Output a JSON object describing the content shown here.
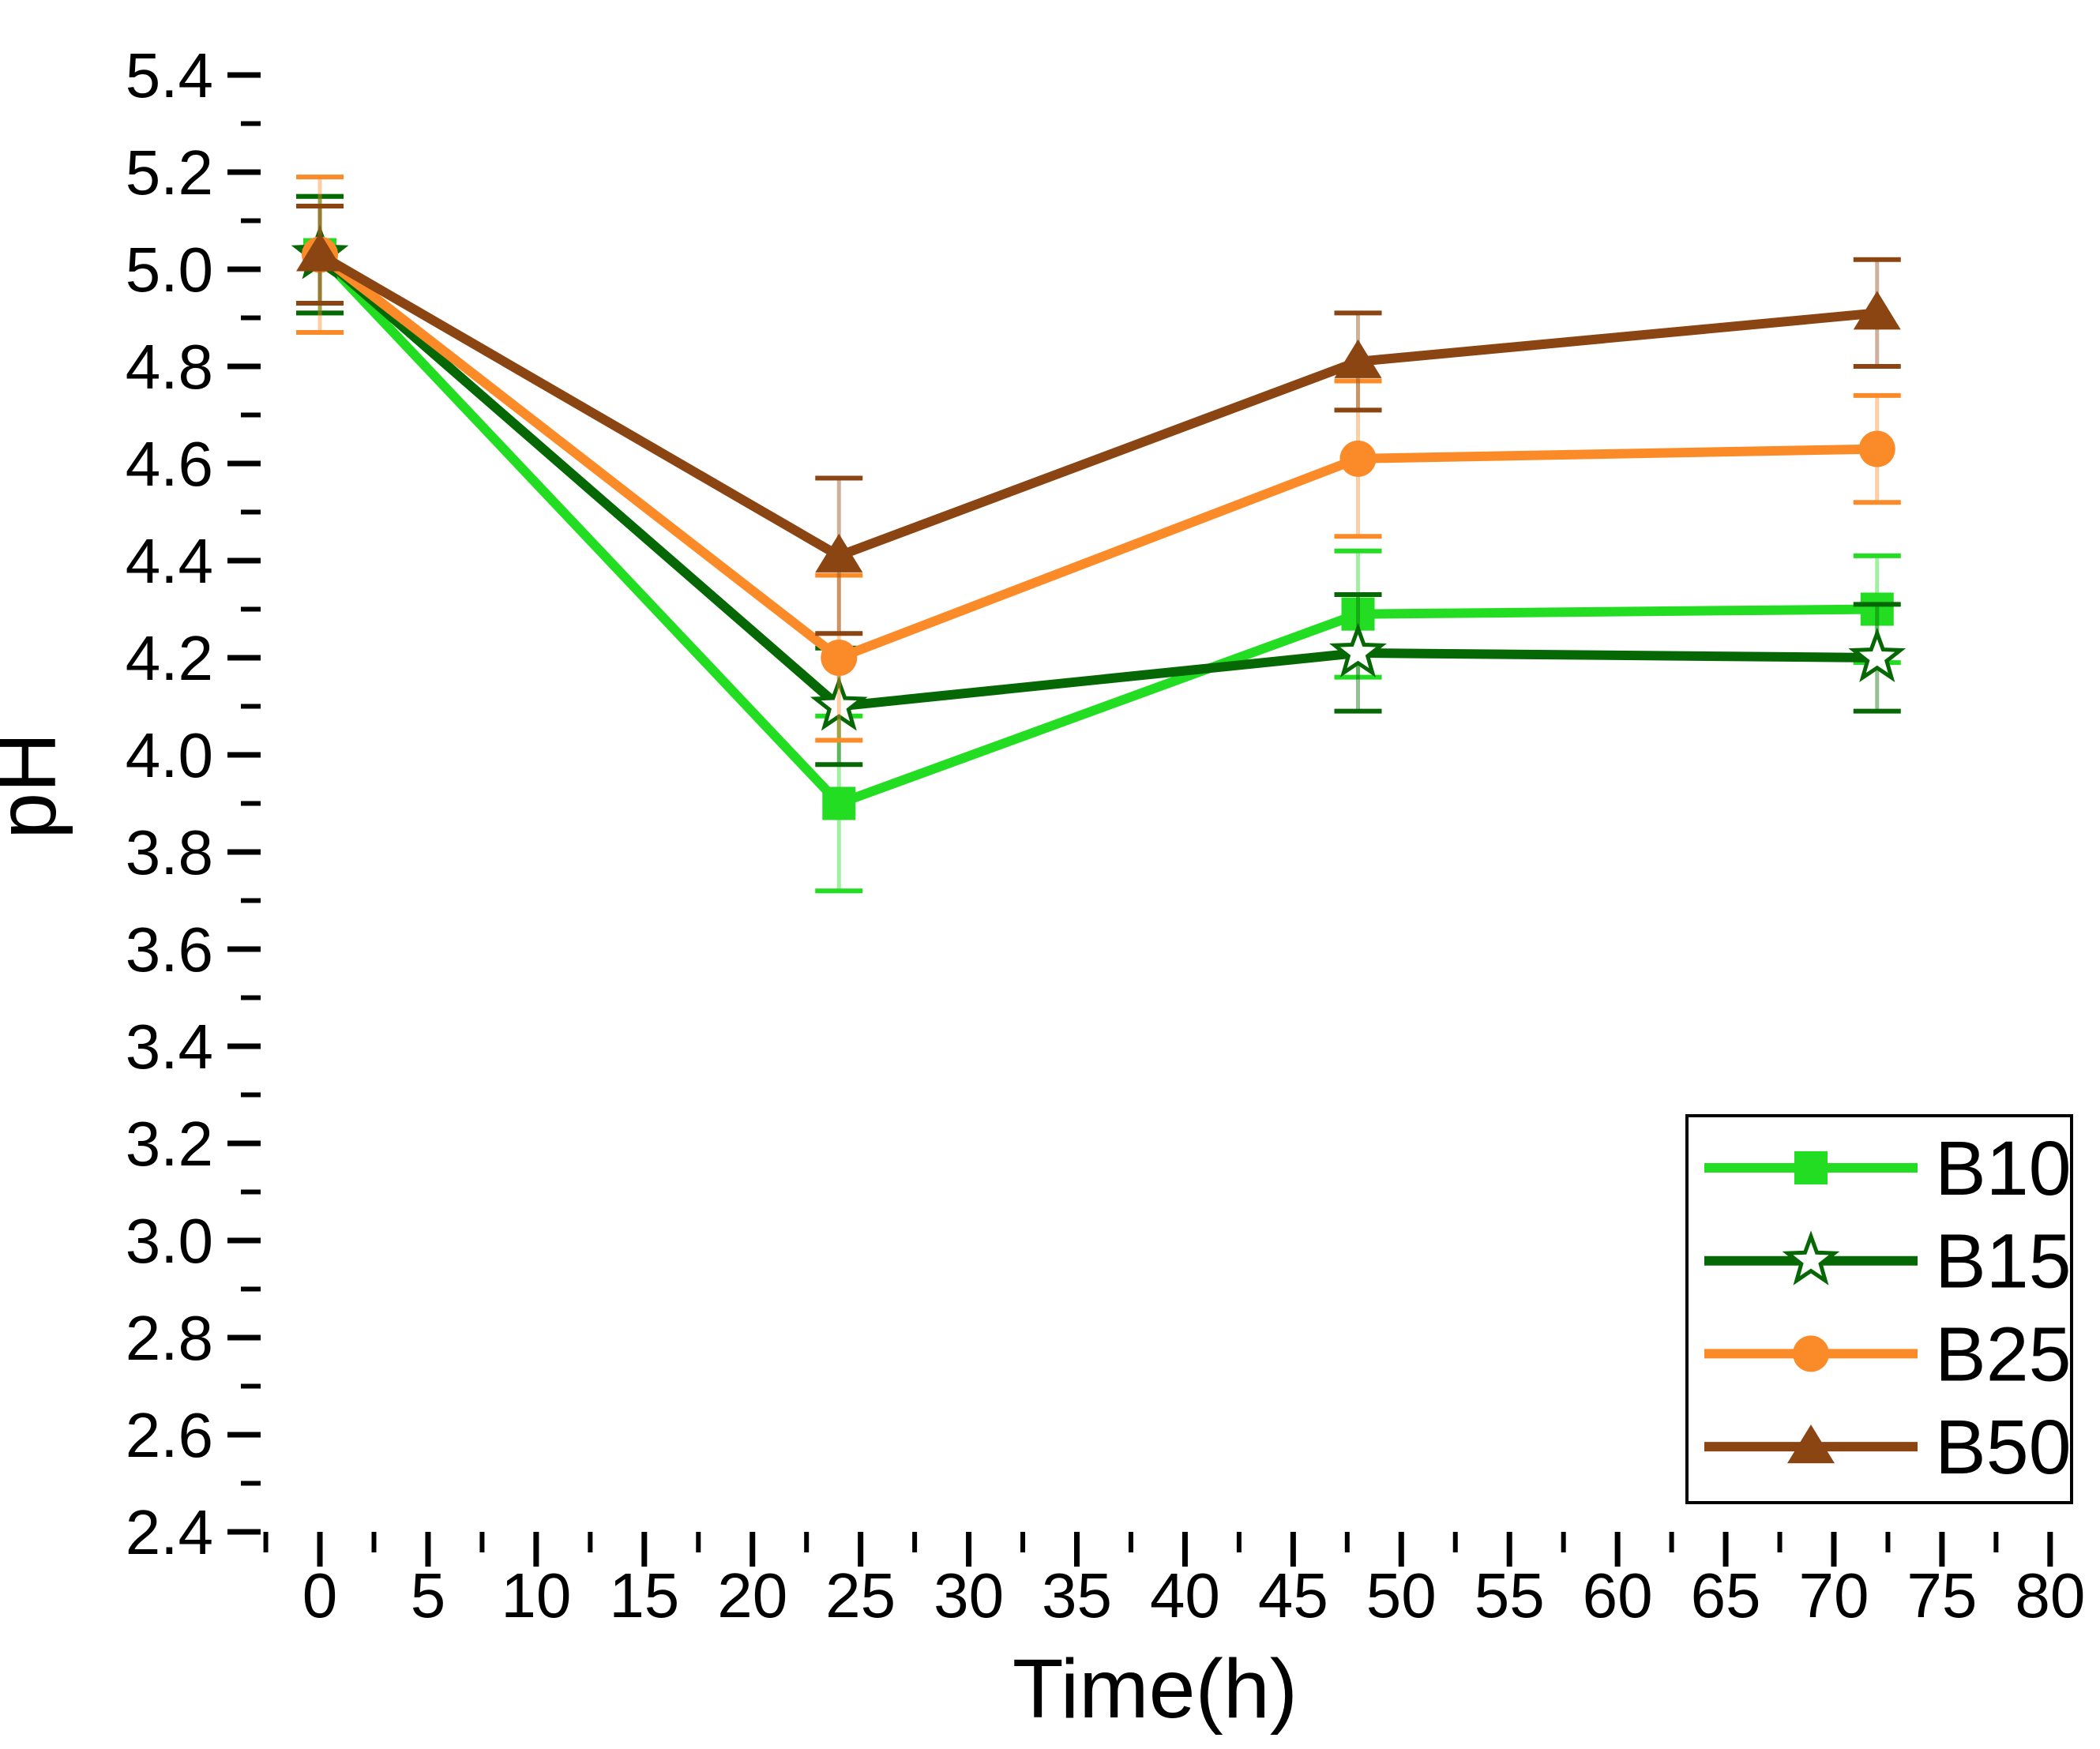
{
  "figure": {
    "background": "#ffffff",
    "axis_color": "#000000",
    "text_color": "#000000"
  },
  "chart_data": {
    "type": "line",
    "title": "",
    "xlabel": "Time(h)",
    "ylabel": "pH",
    "grid": false,
    "legend_position": "bottom-right",
    "xlim": [
      -2.74,
      81.43
    ],
    "ylim": [
      2.4,
      5.4
    ],
    "x_major_ticks": [
      "0",
      "5",
      "10",
      "15",
      "20",
      "25",
      "30",
      "35",
      "40",
      "45",
      "50",
      "55",
      "60",
      "65",
      "70",
      "75",
      "80"
    ],
    "y_major_ticks": [
      "5.4",
      "5.2",
      "5.0",
      "4.8",
      "4.6",
      "4.4",
      "4.2",
      "4.0",
      "3.8",
      "3.6",
      "3.4",
      "3.2",
      "3.0",
      "2.8",
      "2.6",
      "2.4"
    ],
    "x_minor_ticks": [
      -2.5,
      2.5,
      7.5,
      12.5,
      17.5,
      22.5,
      27.5,
      32.5,
      37.5,
      42.5,
      47.5,
      52.5,
      57.5,
      62.5,
      67.5,
      72.5,
      77.5
    ],
    "y_minor_ticks": [
      5.3,
      5.1,
      4.9,
      4.7,
      4.5,
      4.3,
      4.1,
      3.9,
      3.7,
      3.5,
      3.3,
      3.1,
      2.9,
      2.7,
      2.5
    ],
    "x": [
      0,
      24,
      48,
      72
    ],
    "series": [
      {
        "name": "B10",
        "color": "#22DD22",
        "marker": "square",
        "values": [
          5.03,
          3.9,
          4.29,
          4.3
        ],
        "errors": [
          0.12,
          0.18,
          0.13,
          0.11
        ]
      },
      {
        "name": "B15",
        "color": "#056805",
        "marker": "star",
        "marker_fill": "#ffffff",
        "values": [
          5.03,
          4.1,
          4.21,
          4.2
        ],
        "errors": [
          0.12,
          0.12,
          0.12,
          0.11
        ]
      },
      {
        "name": "B25",
        "color": "#FB8B28",
        "marker": "circle",
        "values": [
          5.03,
          4.2,
          4.61,
          4.63
        ],
        "errors": [
          0.16,
          0.17,
          0.16,
          0.11
        ]
      },
      {
        "name": "B50",
        "color": "#8B4513",
        "marker": "triangle",
        "values": [
          5.03,
          4.41,
          4.81,
          4.91
        ],
        "errors": [
          0.1,
          0.16,
          0.1,
          0.11
        ]
      }
    ],
    "legend": [
      "B10",
      "B15",
      "B25",
      "B50"
    ]
  }
}
